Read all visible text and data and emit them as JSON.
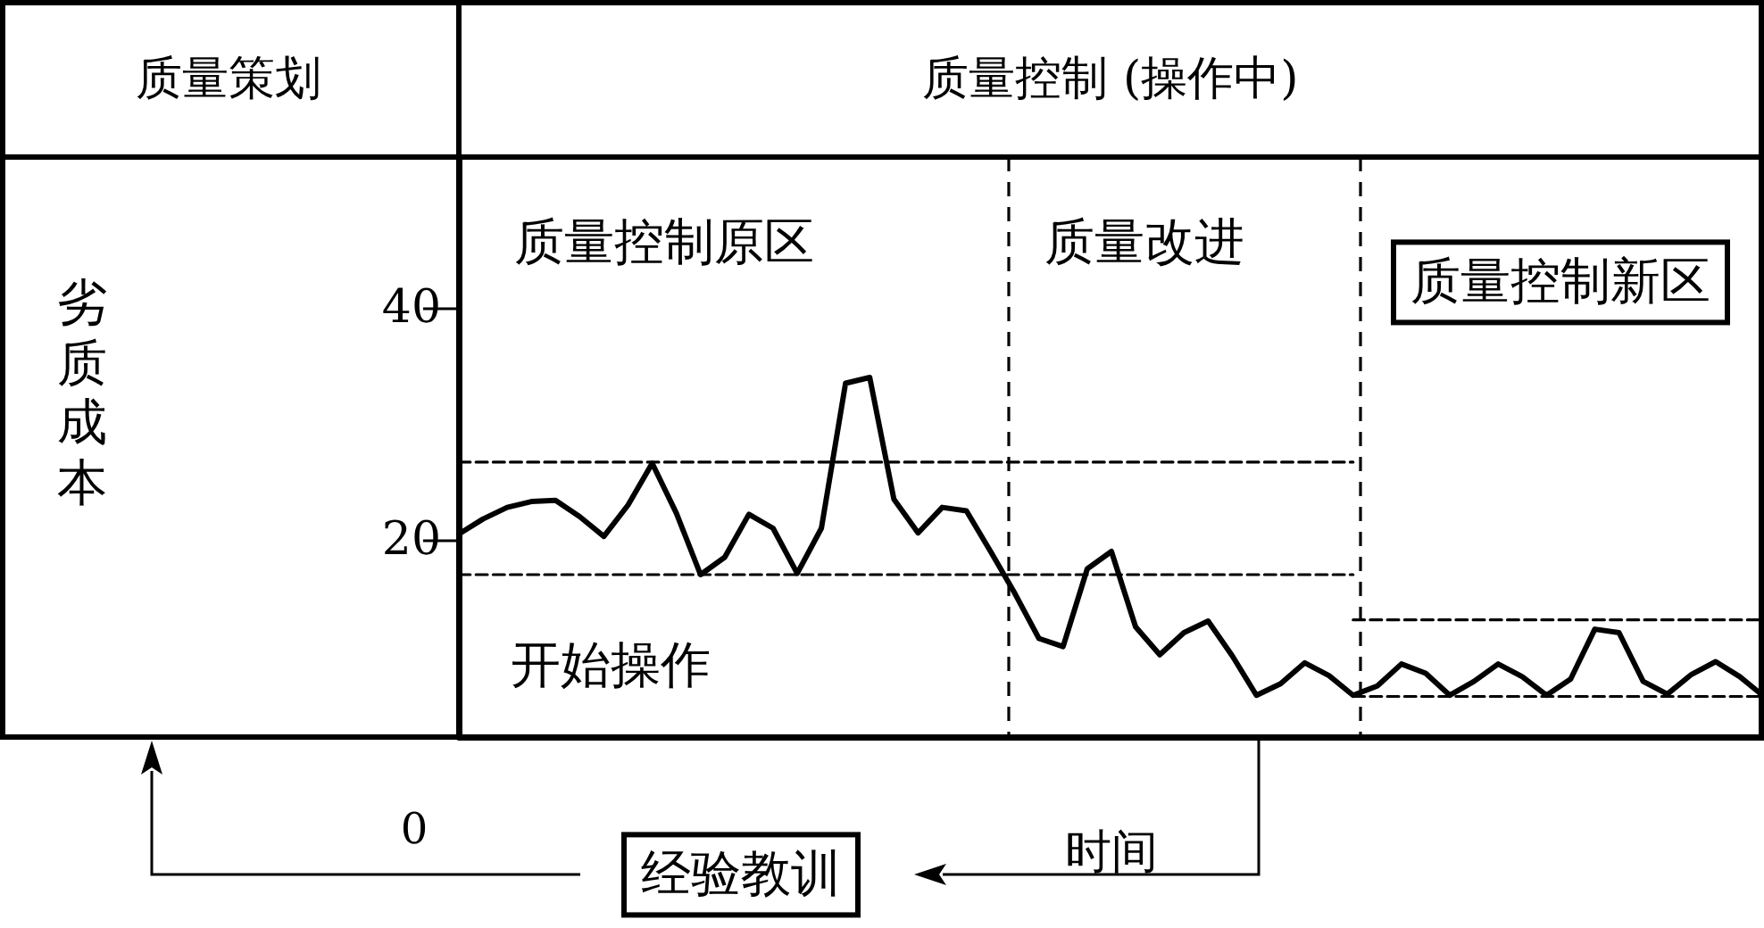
{
  "chart_data": {
    "type": "line",
    "xlabel": "时间",
    "annotations": [
      "质量策划",
      "质量控制 (操作中)",
      "质量控制原区",
      "质量改进",
      "质量控制新区",
      "开始操作",
      "0",
      "经验教训",
      "劣质成本"
    ],
    "categories": [
      null,
      null,
      null,
      null,
      null,
      null,
      null,
      null,
      null,
      null,
      null,
      null,
      null,
      null,
      null,
      null,
      null,
      null,
      null,
      null,
      null,
      null,
      null,
      null,
      null,
      null,
      null,
      null,
      null,
      null,
      null,
      null,
      null,
      null,
      null,
      null,
      null,
      null,
      null,
      null,
      null,
      null,
      null,
      null,
      null,
      null,
      null,
      null,
      null,
      null,
      null,
      null,
      null,
      null,
      null
    ],
    "ylim": [
      3,
      53
    ],
    "yticks": [
      20,
      40
    ],
    "tick_labels": "y",
    "grid": false,
    "marker": "none",
    "series": [
      {
        "color": "#000000",
        "values": [
          20.5,
          21.8,
          22.8,
          23.3,
          23.4,
          22.0,
          20.3,
          23.0,
          26.6,
          22.3,
          17.0,
          18.5,
          22.2,
          21.0,
          17.1,
          21.0,
          33.5,
          34.0,
          23.5,
          20.6,
          22.8,
          22.5,
          19.0,
          15.4,
          11.5,
          10.8,
          17.5,
          19.0,
          12.5,
          10.1,
          12.0,
          13.0,
          10.0,
          6.6,
          7.6,
          9.4,
          8.3,
          6.6,
          7.4,
          9.3,
          8.5,
          6.6,
          7.8,
          9.3,
          8.2,
          6.6,
          8.0,
          12.3,
          12.0,
          7.8,
          6.7,
          8.4,
          9.5,
          8.2,
          6.5
        ]
      },
      {
        "color": "#000000",
        "line_style": "dashed",
        "values": [
          26.7,
          26.7,
          26.7,
          26.7,
          26.7,
          26.7,
          26.7,
          26.7,
          26.7,
          26.7,
          26.7,
          26.7,
          26.7,
          26.7,
          26.7,
          26.7,
          26.7,
          26.7,
          26.7,
          26.7,
          26.7,
          26.7,
          26.7,
          26.7,
          26.7,
          26.7,
          26.7,
          26.7,
          26.7,
          26.7,
          26.7,
          26.7,
          26.7,
          26.7,
          26.7,
          26.7,
          26.7,
          26.7,
          null,
          null,
          null,
          null,
          null,
          null,
          null,
          null,
          null,
          null,
          null,
          null,
          null,
          null,
          null,
          null,
          null
        ]
      },
      {
        "color": "#000000",
        "line_style": "dashed",
        "values": [
          17,
          17,
          17,
          17,
          17,
          17,
          17,
          17,
          17,
          17,
          17,
          17,
          17,
          17,
          17,
          17,
          17,
          17,
          17,
          17,
          17,
          17,
          17,
          17,
          17,
          17,
          17,
          17,
          17,
          17,
          17,
          17,
          17,
          17,
          17,
          17,
          17,
          17,
          null,
          null,
          null,
          null,
          null,
          null,
          null,
          null,
          null,
          null,
          null,
          null,
          null,
          null,
          null,
          null,
          null
        ]
      },
      {
        "color": "#000000",
        "line_style": "dashed",
        "values": [
          null,
          null,
          null,
          null,
          null,
          null,
          null,
          null,
          null,
          null,
          null,
          null,
          null,
          null,
          null,
          null,
          null,
          null,
          null,
          null,
          null,
          null,
          null,
          null,
          null,
          null,
          null,
          null,
          null,
          null,
          null,
          null,
          null,
          null,
          null,
          null,
          null,
          13.1,
          13.1,
          13.1,
          13.1,
          13.1,
          13.1,
          13.1,
          13.1,
          13.1,
          13.1,
          13.1,
          13.1,
          13.1,
          13.1,
          13.1,
          13.1,
          13.1,
          13.1
        ]
      },
      {
        "color": "#000000",
        "line_style": "dashed",
        "values": [
          null,
          null,
          null,
          null,
          null,
          null,
          null,
          null,
          null,
          null,
          null,
          null,
          null,
          null,
          null,
          null,
          null,
          null,
          null,
          null,
          null,
          null,
          null,
          null,
          null,
          null,
          null,
          null,
          null,
          null,
          null,
          null,
          null,
          null,
          null,
          null,
          null,
          6.5,
          6.5,
          6.5,
          6.5,
          6.5,
          6.5,
          6.5,
          6.5,
          6.5,
          6.5,
          6.5,
          6.5,
          6.5,
          6.5,
          6.5,
          6.5,
          6.5,
          6.5
        ]
      }
    ]
  }
}
